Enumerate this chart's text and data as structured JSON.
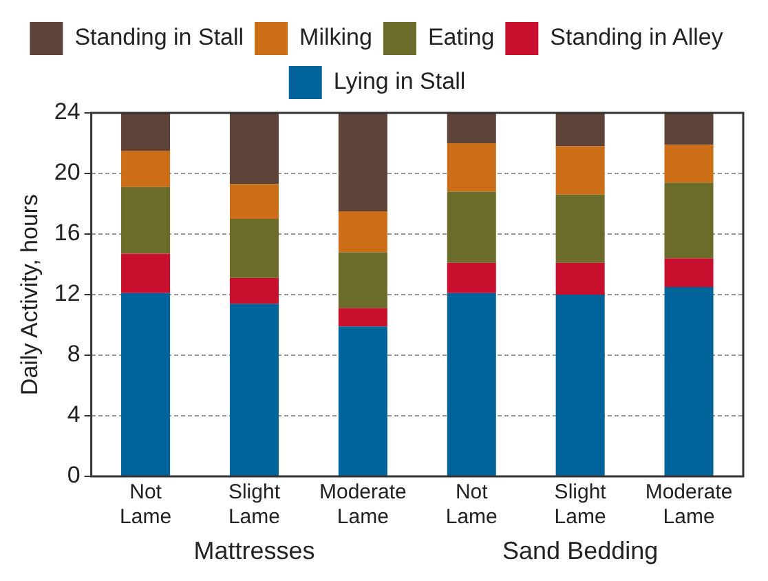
{
  "chart_data": {
    "type": "bar",
    "stacked": true,
    "ylabel": "Daily Activity, hours",
    "categories": [
      "Not Lame",
      "Slight Lame",
      "Moderate Lame",
      "Not Lame",
      "Slight Lame",
      "Moderate Lame"
    ],
    "series": [
      {
        "name": "Lying in Stall",
        "color": "#00649a",
        "values": [
          12.1,
          11.4,
          9.9,
          12.1,
          12.0,
          12.5
        ]
      },
      {
        "name": "Standing in Alley",
        "color": "#c8102e",
        "values": [
          2.6,
          1.7,
          1.2,
          2.0,
          2.1,
          1.9
        ]
      },
      {
        "name": "Eating",
        "color": "#6b6b2a",
        "values": [
          4.4,
          3.9,
          3.7,
          4.7,
          4.5,
          5.0
        ]
      },
      {
        "name": "Milking",
        "color": "#cc6d17",
        "values": [
          2.4,
          2.3,
          2.7,
          3.2,
          3.2,
          2.5
        ]
      },
      {
        "name": "Standing in Stall",
        "color": "#5e4339",
        "values": [
          2.5,
          4.7,
          6.5,
          2.0,
          2.2,
          2.1
        ]
      }
    ],
    "ylim": [
      0,
      24
    ],
    "yticks": [
      0,
      4,
      8,
      12,
      16,
      20,
      24
    ],
    "grid": "y",
    "legend": "top",
    "annotations": [
      "Mattresses",
      "Sand Bedding"
    ]
  }
}
